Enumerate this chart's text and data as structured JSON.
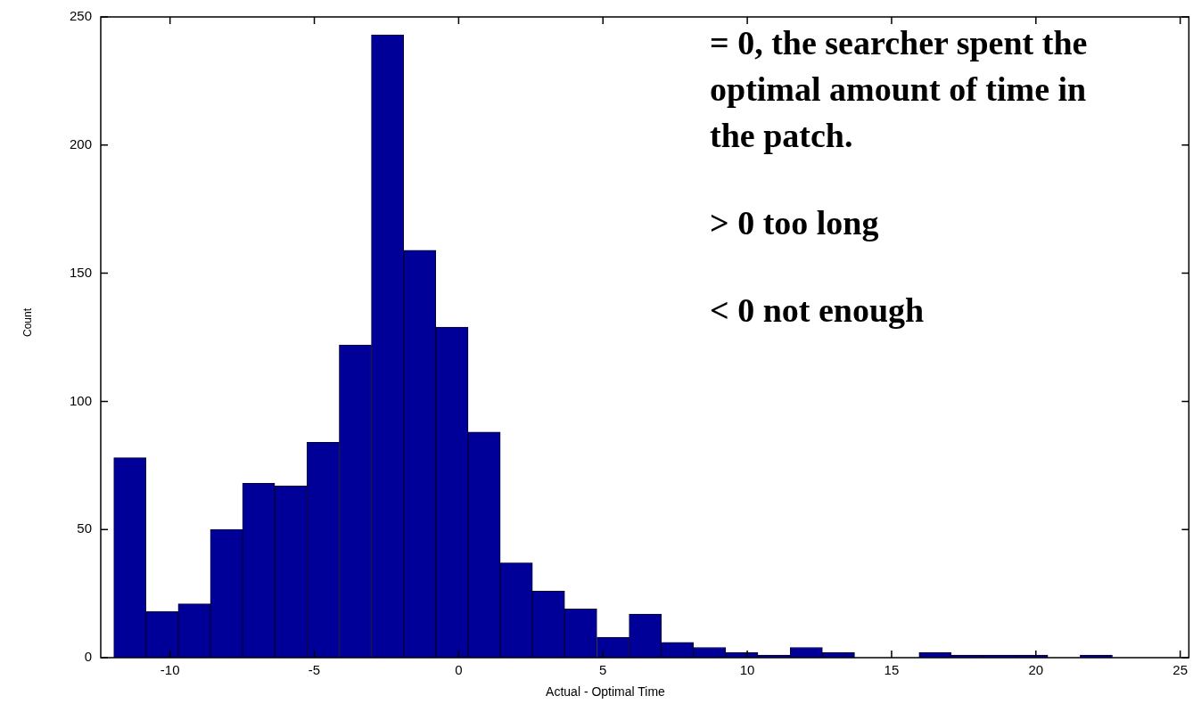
{
  "chart_data": {
    "type": "histogram",
    "xlabel": "Actual - Optimal Time",
    "ylabel": "Count",
    "bins": [
      -11.95,
      -10.83,
      -9.72,
      -8.6,
      -7.49,
      -6.37,
      -5.25,
      -4.14,
      -3.02,
      -1.91,
      -0.79,
      0.33,
      1.44,
      2.56,
      3.67,
      4.79,
      5.91,
      7.02,
      8.14,
      9.25,
      10.37,
      11.49,
      12.6,
      13.72,
      14.83,
      15.95,
      17.07,
      18.18,
      19.3,
      20.41,
      21.53,
      22.65
    ],
    "values": [
      78,
      18,
      21,
      50,
      68,
      67,
      84,
      122,
      243,
      159,
      129,
      88,
      37,
      26,
      19,
      8,
      17,
      6,
      4,
      2,
      1,
      4,
      2,
      0,
      0,
      2,
      1,
      1,
      1,
      0,
      1
    ],
    "color": "#000099",
    "xlim": [
      -12.4,
      25.3
    ],
    "xticks": [
      -10,
      -5,
      0,
      5,
      10,
      15,
      20,
      25
    ],
    "ylim": [
      0,
      250
    ],
    "yticks": [
      0,
      50,
      100,
      150,
      200,
      250
    ],
    "grid": false,
    "legend": false,
    "annotations": [
      "= 0, the searcher spent the optimal amount of time in the patch.",
      "> 0 too long",
      "< 0 not enough"
    ]
  }
}
